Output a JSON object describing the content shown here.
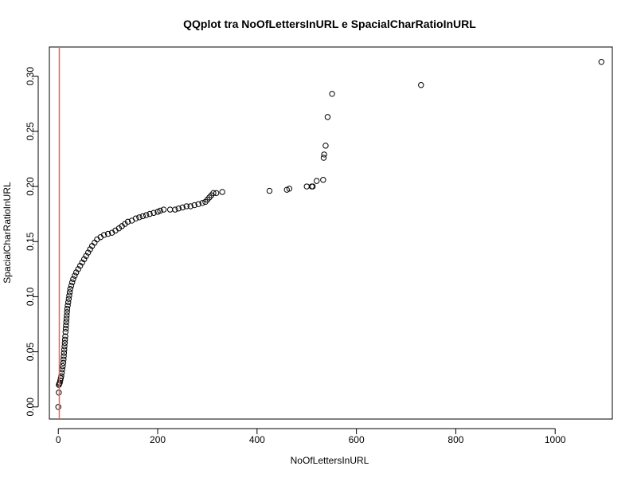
{
  "chart_data": {
    "type": "scatter",
    "title": "QQplot tra NoOfLettersInURL e SpacialCharRatioInURL",
    "xlabel": "NoOfLettersInURL",
    "ylabel": "SpacialCharRatioInURL",
    "xlim": [
      -18,
      1115
    ],
    "ylim": [
      -0.011,
      0.3265
    ],
    "xticks": [
      0,
      200,
      400,
      600,
      800,
      1000
    ],
    "yticks": [
      "0.00",
      "0.05",
      "0.10",
      "0.15",
      "0.20",
      "0.25",
      "0.30"
    ],
    "grid": false,
    "legend": "none",
    "reference_line": {
      "x": 2,
      "color": "#ff5a4f"
    },
    "points": [
      [
        0,
        0.0
      ],
      [
        1,
        0.013
      ],
      [
        1,
        0.02
      ],
      [
        2,
        0.021
      ],
      [
        3,
        0.022
      ],
      [
        4,
        0.024
      ],
      [
        5,
        0.026
      ],
      [
        6,
        0.028
      ],
      [
        7,
        0.031
      ],
      [
        8,
        0.034
      ],
      [
        9,
        0.037
      ],
      [
        10,
        0.04
      ],
      [
        10.5,
        0.043
      ],
      [
        11,
        0.046
      ],
      [
        11.5,
        0.049
      ],
      [
        12,
        0.052
      ],
      [
        12.5,
        0.055
      ],
      [
        13,
        0.058
      ],
      [
        13.5,
        0.061
      ],
      [
        14,
        0.064
      ],
      [
        14.5,
        0.068
      ],
      [
        15,
        0.071
      ],
      [
        15.5,
        0.074
      ],
      [
        16,
        0.077
      ],
      [
        16.5,
        0.08
      ],
      [
        17,
        0.083
      ],
      [
        17.5,
        0.086
      ],
      [
        18,
        0.089
      ],
      [
        19,
        0.092
      ],
      [
        20,
        0.095
      ],
      [
        21,
        0.098
      ],
      [
        22,
        0.101
      ],
      [
        23,
        0.104
      ],
      [
        24,
        0.107
      ],
      [
        26,
        0.11
      ],
      [
        28,
        0.113
      ],
      [
        30,
        0.116
      ],
      [
        33,
        0.119
      ],
      [
        36,
        0.122
      ],
      [
        40,
        0.125
      ],
      [
        44,
        0.128
      ],
      [
        48,
        0.131
      ],
      [
        52,
        0.134
      ],
      [
        56,
        0.137
      ],
      [
        60,
        0.14
      ],
      [
        64,
        0.143
      ],
      [
        68,
        0.146
      ],
      [
        73,
        0.149
      ],
      [
        78,
        0.152
      ],
      [
        85,
        0.154
      ],
      [
        92,
        0.156
      ],
      [
        100,
        0.157
      ],
      [
        108,
        0.158
      ],
      [
        115,
        0.16
      ],
      [
        122,
        0.162
      ],
      [
        128,
        0.164
      ],
      [
        134,
        0.166
      ],
      [
        140,
        0.168
      ],
      [
        148,
        0.169
      ],
      [
        156,
        0.171
      ],
      [
        163,
        0.172
      ],
      [
        170,
        0.173
      ],
      [
        177,
        0.174
      ],
      [
        184,
        0.175
      ],
      [
        192,
        0.176
      ],
      [
        200,
        0.177
      ],
      [
        205,
        0.178
      ],
      [
        212,
        0.179
      ],
      [
        225,
        0.179
      ],
      [
        235,
        0.179
      ],
      [
        242,
        0.18
      ],
      [
        250,
        0.181
      ],
      [
        258,
        0.182
      ],
      [
        266,
        0.182
      ],
      [
        274,
        0.183
      ],
      [
        282,
        0.184
      ],
      [
        290,
        0.185
      ],
      [
        296,
        0.186
      ],
      [
        300,
        0.188
      ],
      [
        304,
        0.19
      ],
      [
        308,
        0.192
      ],
      [
        312,
        0.194
      ],
      [
        318,
        0.194
      ],
      [
        330,
        0.195
      ],
      [
        425,
        0.196
      ],
      [
        460,
        0.197
      ],
      [
        465,
        0.198
      ],
      [
        500,
        0.2
      ],
      [
        510,
        0.2
      ],
      [
        512,
        0.2
      ],
      [
        520,
        0.205
      ],
      [
        533,
        0.206
      ],
      [
        534,
        0.226
      ],
      [
        535,
        0.229
      ],
      [
        538,
        0.237
      ],
      [
        542,
        0.263
      ],
      [
        551,
        0.284
      ],
      [
        730,
        0.292
      ],
      [
        1093,
        0.313
      ]
    ]
  }
}
